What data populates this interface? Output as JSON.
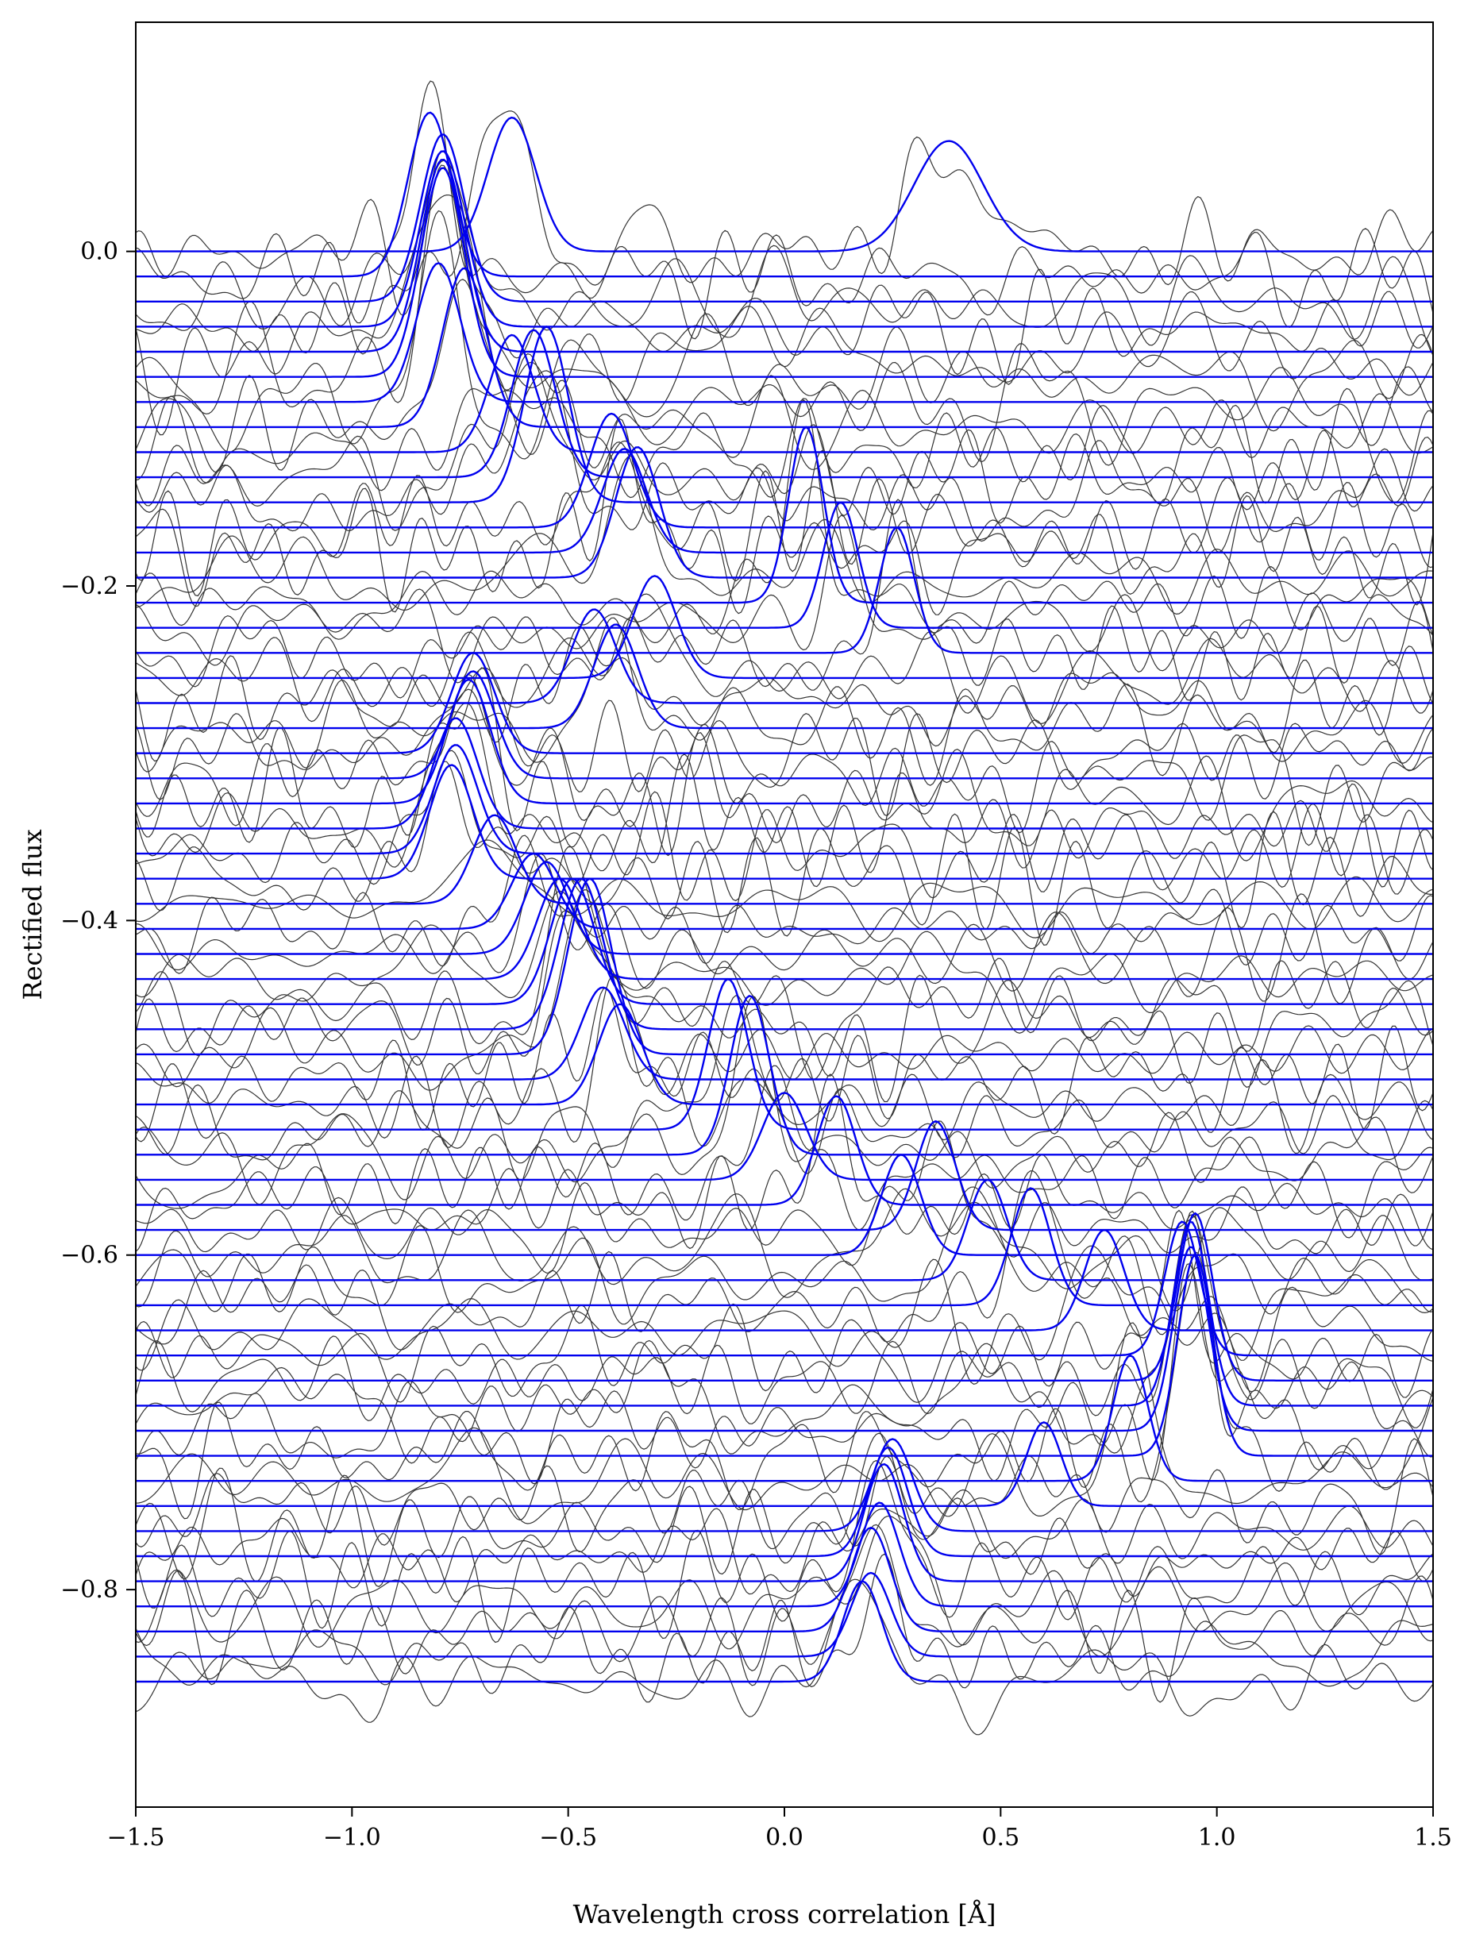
{
  "chart_data": {
    "type": "line",
    "title": "",
    "xlabel": "Wavelength cross correlation [Å]",
    "ylabel": "Rectified flux",
    "xlim": [
      -1.5,
      1.5
    ],
    "ylim": [
      -0.93,
      0.137
    ],
    "x_ticks": [
      -1.5,
      -1.0,
      -0.5,
      0.0,
      0.5,
      1.0,
      1.5
    ],
    "x_tick_labels": [
      "−1.5",
      "−1.0",
      "−0.5",
      "0.0",
      "0.5",
      "1.0",
      "1.5"
    ],
    "y_ticks": [
      0.0,
      -0.2,
      -0.4,
      -0.6,
      -0.8
    ],
    "y_tick_labels": [
      "0.0",
      "−0.2",
      "−0.4",
      "−0.6",
      "−0.8"
    ],
    "grid": false,
    "legend": "none",
    "colors": {
      "gaussian_fit": "#0000ee",
      "observed": "#333333"
    },
    "series": [
      {
        "offset": 0.0,
        "peak_x": [
          -0.63,
          0.38
        ],
        "peak_amp": [
          0.08,
          0.066
        ],
        "sigma": [
          0.055,
          0.08
        ]
      },
      {
        "offset": -0.015,
        "peak_x": [
          -0.82
        ],
        "peak_amp": [
          0.098
        ],
        "sigma": [
          0.05
        ]
      },
      {
        "offset": -0.03,
        "peak_x": [
          -0.79
        ],
        "peak_amp": [
          0.1
        ],
        "sigma": [
          0.05
        ]
      },
      {
        "offset": -0.045,
        "peak_x": [
          -0.79
        ],
        "peak_amp": [
          0.105
        ],
        "sigma": [
          0.05
        ]
      },
      {
        "offset": -0.06,
        "peak_x": [
          -0.79
        ],
        "peak_amp": [
          0.115
        ],
        "sigma": [
          0.05
        ]
      },
      {
        "offset": -0.075,
        "peak_x": [
          -0.79
        ],
        "peak_amp": [
          0.125
        ],
        "sigma": [
          0.05
        ]
      },
      {
        "offset": -0.09,
        "peak_x": [
          -0.8
        ],
        "peak_amp": [
          0.083
        ],
        "sigma": [
          0.05
        ]
      },
      {
        "offset": -0.105,
        "peak_x": [
          -0.74
        ],
        "peak_amp": [
          0.095
        ],
        "sigma": [
          0.05
        ]
      },
      {
        "offset": -0.12,
        "peak_x": [
          -0.63
        ],
        "peak_amp": [
          0.07
        ],
        "sigma": [
          0.05
        ]
      },
      {
        "offset": -0.135,
        "peak_x": [
          -0.58
        ],
        "peak_amp": [
          0.088
        ],
        "sigma": [
          0.05
        ]
      },
      {
        "offset": -0.15,
        "peak_x": [
          -0.55
        ],
        "peak_amp": [
          0.105
        ],
        "sigma": [
          0.05
        ]
      },
      {
        "offset": -0.165,
        "peak_x": [
          -0.4
        ],
        "peak_amp": [
          0.068
        ],
        "sigma": [
          0.05
        ]
      },
      {
        "offset": -0.18,
        "peak_x": [
          -0.37
        ],
        "peak_amp": [
          0.062
        ],
        "sigma": [
          0.05
        ]
      },
      {
        "offset": -0.195,
        "peak_x": [
          -0.34
        ],
        "peak_amp": [
          0.078
        ],
        "sigma": [
          0.05
        ]
      },
      {
        "offset": -0.21,
        "peak_x": [
          0.05
        ],
        "peak_amp": [
          0.105
        ],
        "sigma": [
          0.04
        ]
      },
      {
        "offset": -0.225,
        "peak_x": [
          0.13
        ],
        "peak_amp": [
          0.075
        ],
        "sigma": [
          0.04
        ]
      },
      {
        "offset": -0.24,
        "peak_x": [
          0.26
        ],
        "peak_amp": [
          0.075
        ],
        "sigma": [
          0.04
        ]
      },
      {
        "offset": -0.255,
        "peak_x": [
          -0.3
        ],
        "peak_amp": [
          0.061
        ],
        "sigma": [
          0.05
        ]
      },
      {
        "offset": -0.27,
        "peak_x": [
          -0.44
        ],
        "peak_amp": [
          0.056
        ],
        "sigma": [
          0.05
        ]
      },
      {
        "offset": -0.285,
        "peak_x": [
          -0.39
        ],
        "peak_amp": [
          0.062
        ],
        "sigma": [
          0.05
        ]
      },
      {
        "offset": -0.3,
        "peak_x": [
          -0.72
        ],
        "peak_amp": [
          0.06
        ],
        "sigma": [
          0.05
        ]
      },
      {
        "offset": -0.315,
        "peak_x": [
          -0.72
        ],
        "peak_amp": [
          0.064
        ],
        "sigma": [
          0.05
        ]
      },
      {
        "offset": -0.33,
        "peak_x": [
          -0.73
        ],
        "peak_amp": [
          0.074
        ],
        "sigma": [
          0.05
        ]
      },
      {
        "offset": -0.345,
        "peak_x": [
          -0.76
        ],
        "peak_amp": [
          0.066
        ],
        "sigma": [
          0.05
        ]
      },
      {
        "offset": -0.36,
        "peak_x": [
          -0.76
        ],
        "peak_amp": [
          0.065
        ],
        "sigma": [
          0.05
        ]
      },
      {
        "offset": -0.375,
        "peak_x": [
          -0.77
        ],
        "peak_amp": [
          0.068
        ],
        "sigma": [
          0.05
        ]
      },
      {
        "offset": -0.39,
        "peak_x": [
          -0.67
        ],
        "peak_amp": [
          0.053
        ],
        "sigma": [
          0.05
        ]
      },
      {
        "offset": -0.405,
        "peak_x": [
          -0.58
        ],
        "peak_amp": [
          0.045
        ],
        "sigma": [
          0.05
        ]
      },
      {
        "offset": -0.42,
        "peak_x": [
          -0.55
        ],
        "peak_amp": [
          0.055
        ],
        "sigma": [
          0.05
        ]
      },
      {
        "offset": -0.435,
        "peak_x": [
          -0.52
        ],
        "peak_amp": [
          0.06
        ],
        "sigma": [
          0.05
        ]
      },
      {
        "offset": -0.45,
        "peak_x": [
          -0.49
        ],
        "peak_amp": [
          0.075
        ],
        "sigma": [
          0.05
        ]
      },
      {
        "offset": -0.465,
        "peak_x": [
          -0.47
        ],
        "peak_amp": [
          0.09
        ],
        "sigma": [
          0.05
        ]
      },
      {
        "offset": -0.48,
        "peak_x": [
          -0.45
        ],
        "peak_amp": [
          0.105
        ],
        "sigma": [
          0.05
        ]
      },
      {
        "offset": -0.495,
        "peak_x": [
          -0.42
        ],
        "peak_amp": [
          0.055
        ],
        "sigma": [
          0.05
        ]
      },
      {
        "offset": -0.51,
        "peak_x": [
          -0.38
        ],
        "peak_amp": [
          0.06
        ],
        "sigma": [
          0.05
        ]
      },
      {
        "offset": -0.525,
        "peak_x": [
          -0.13
        ],
        "peak_amp": [
          0.09
        ],
        "sigma": [
          0.045
        ]
      },
      {
        "offset": -0.54,
        "peak_x": [
          -0.08
        ],
        "peak_amp": [
          0.095
        ],
        "sigma": [
          0.045
        ]
      },
      {
        "offset": -0.555,
        "peak_x": [
          0.0
        ],
        "peak_amp": [
          0.052
        ],
        "sigma": [
          0.05
        ]
      },
      {
        "offset": -0.57,
        "peak_x": [
          0.12
        ],
        "peak_amp": [
          0.065
        ],
        "sigma": [
          0.045
        ]
      },
      {
        "offset": -0.585,
        "peak_x": [
          0.35
        ],
        "peak_amp": [
          0.065
        ],
        "sigma": [
          0.045
        ]
      },
      {
        "offset": -0.6,
        "peak_x": [
          0.27
        ],
        "peak_amp": [
          0.06
        ],
        "sigma": [
          0.045
        ]
      },
      {
        "offset": -0.615,
        "peak_x": [
          0.47
        ],
        "peak_amp": [
          0.06
        ],
        "sigma": [
          0.045
        ]
      },
      {
        "offset": -0.63,
        "peak_x": [
          0.57
        ],
        "peak_amp": [
          0.07
        ],
        "sigma": [
          0.045
        ]
      },
      {
        "offset": -0.645,
        "peak_x": [
          0.74
        ],
        "peak_amp": [
          0.06
        ],
        "sigma": [
          0.045
        ]
      },
      {
        "offset": -0.66,
        "peak_x": [
          0.92
        ],
        "peak_amp": [
          0.08
        ],
        "sigma": [
          0.04
        ]
      },
      {
        "offset": -0.675,
        "peak_x": [
          0.95
        ],
        "peak_amp": [
          0.1
        ],
        "sigma": [
          0.04
        ]
      },
      {
        "offset": -0.69,
        "peak_x": [
          0.94
        ],
        "peak_amp": [
          0.11
        ],
        "sigma": [
          0.04
        ]
      },
      {
        "offset": -0.705,
        "peak_x": [
          0.94
        ],
        "peak_amp": [
          0.11
        ],
        "sigma": [
          0.04
        ]
      },
      {
        "offset": -0.72,
        "peak_x": [
          0.95
        ],
        "peak_amp": [
          0.12
        ],
        "sigma": [
          0.04
        ]
      },
      {
        "offset": -0.735,
        "peak_x": [
          0.8
        ],
        "peak_amp": [
          0.075
        ],
        "sigma": [
          0.04
        ]
      },
      {
        "offset": -0.75,
        "peak_x": [
          0.6
        ],
        "peak_amp": [
          0.05
        ],
        "sigma": [
          0.04
        ]
      },
      {
        "offset": -0.765,
        "peak_x": [
          0.25
        ],
        "peak_amp": [
          0.055
        ],
        "sigma": [
          0.045
        ]
      },
      {
        "offset": -0.78,
        "peak_x": [
          0.24
        ],
        "peak_amp": [
          0.065
        ],
        "sigma": [
          0.045
        ]
      },
      {
        "offset": -0.795,
        "peak_x": [
          0.23
        ],
        "peak_amp": [
          0.07
        ],
        "sigma": [
          0.045
        ]
      },
      {
        "offset": -0.81,
        "peak_x": [
          0.22
        ],
        "peak_amp": [
          0.062
        ],
        "sigma": [
          0.045
        ]
      },
      {
        "offset": -0.825,
        "peak_x": [
          0.2
        ],
        "peak_amp": [
          0.062
        ],
        "sigma": [
          0.045
        ]
      },
      {
        "offset": -0.84,
        "peak_x": [
          0.2
        ],
        "peak_amp": [
          0.05
        ],
        "sigma": [
          0.045
        ]
      },
      {
        "offset": -0.855,
        "peak_x": [
          0.18
        ],
        "peak_amp": [
          0.06
        ],
        "sigma": [
          0.045
        ]
      }
    ]
  }
}
